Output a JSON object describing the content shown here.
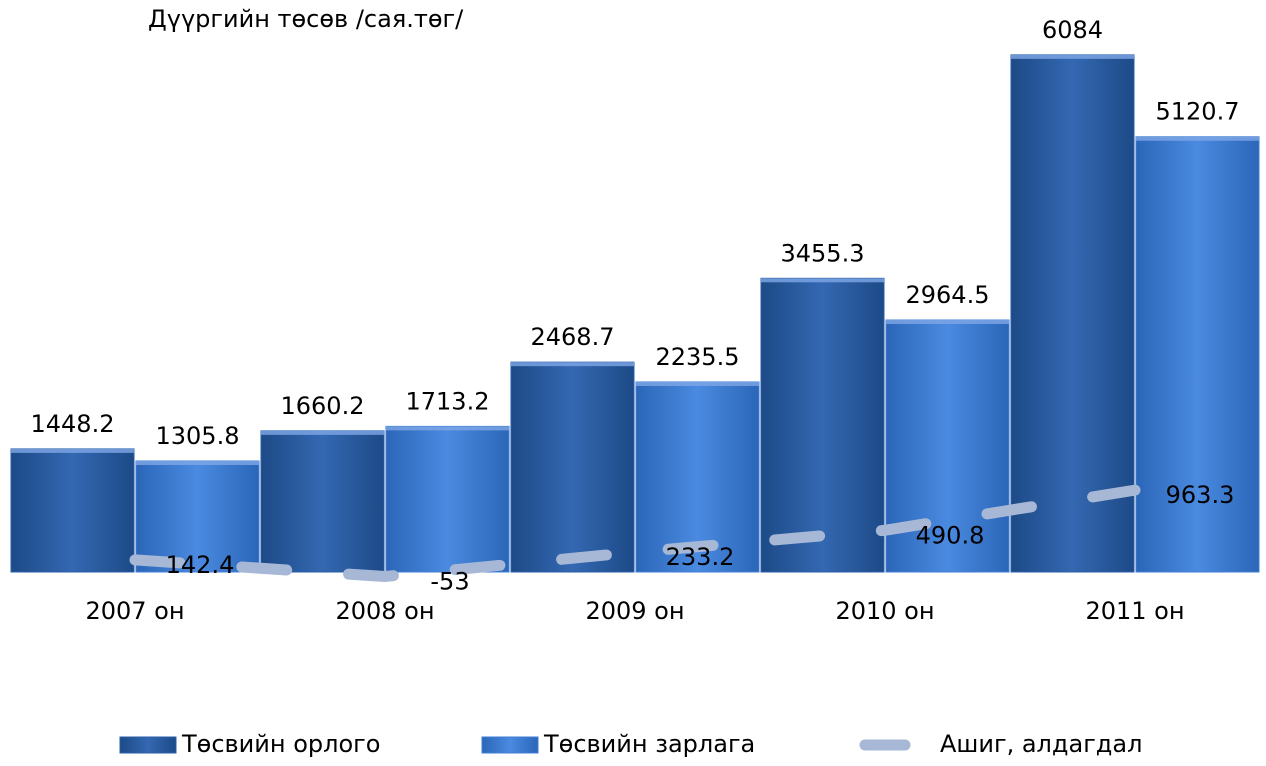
{
  "chart_data": {
    "type": "bar",
    "title": "Дүүргийн төсөв /сая.төг/",
    "categories": [
      "2007 он",
      "2008 он",
      "2009 он",
      "2010 он",
      "2011 он"
    ],
    "series": [
      {
        "name": "Төсвийн орлого",
        "type": "bar",
        "color": "#2a5ea8",
        "values": [
          1448.2,
          1660.2,
          2468.7,
          3455.3,
          6084
        ]
      },
      {
        "name": "Төсвийн зарлага",
        "type": "bar",
        "color": "#3f7fd4",
        "values": [
          1305.8,
          1713.2,
          2235.5,
          2964.5,
          5120.7
        ]
      },
      {
        "name": "Ашиг, алдагдал",
        "type": "line",
        "color": "#a7b8d6",
        "values": [
          142.4,
          -53,
          233.2,
          490.8,
          963.3
        ]
      }
    ],
    "ylim": [
      -200,
      6300
    ],
    "grid": false,
    "legend": "bottom"
  }
}
